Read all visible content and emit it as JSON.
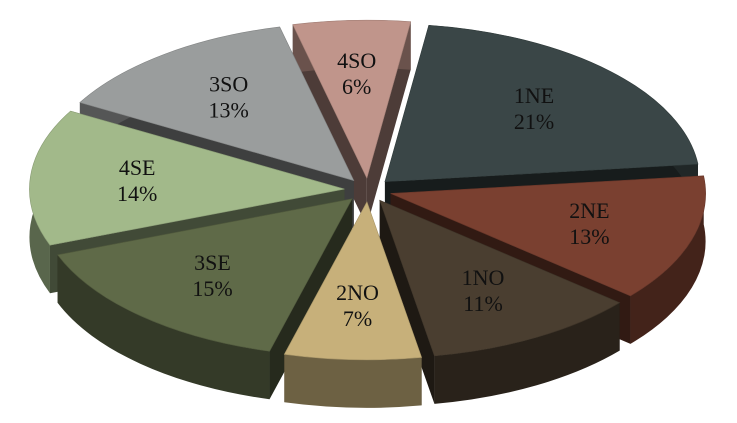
{
  "chart_data": {
    "type": "pie",
    "title": "",
    "style": "3d-exploded",
    "slices": [
      {
        "label": "1NE",
        "value": 21,
        "value_label": "21%",
        "color": "#3a4647"
      },
      {
        "label": "2NE",
        "value": 13,
        "value_label": "13%",
        "color": "#7a4030"
      },
      {
        "label": "1NO",
        "value": 11,
        "value_label": "11%",
        "color": "#4a3e30"
      },
      {
        "label": "2NO",
        "value": 7,
        "value_label": "7%",
        "color": "#c7b07a"
      },
      {
        "label": "3SE",
        "value": 15,
        "value_label": "15%",
        "color": "#5f6a48"
      },
      {
        "label": "4SE",
        "value": 14,
        "value_label": "14%",
        "color": "#a2b98a"
      },
      {
        "label": "3SO",
        "value": 13,
        "value_label": "13%",
        "color": "#9a9d9d"
      },
      {
        "label": "4SO",
        "value": 6,
        "value_label": "6%",
        "color": "#c0958b"
      }
    ]
  }
}
